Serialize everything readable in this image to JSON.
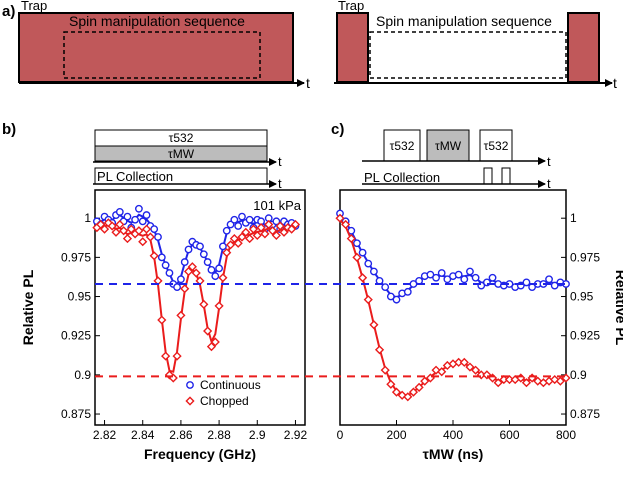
{
  "panel_labels": {
    "a": "a)",
    "b": "b)",
    "c": "c)"
  },
  "panel_a": {
    "left": {
      "trap_label": "Trap",
      "sequence_label": "Spin manipulation sequence",
      "axis_label": "t"
    },
    "right": {
      "trap_label": "Trap",
      "sequence_label": "Spin manipulation sequence",
      "axis_label": "t"
    }
  },
  "panel_b_timing": {
    "tau532": "τ532",
    "taumw": "τMW",
    "pl_collection": "PL Collection",
    "axis_label": "t"
  },
  "panel_c_timing": {
    "tau532_first": "τ532",
    "taumw": "τMW",
    "tau532_second": "τ532",
    "pl_collection": "PL Collection",
    "axis_label": "t"
  },
  "colors": {
    "trap_fill": "#c0585a",
    "continuous": "#1f24e8",
    "chopped": "#ea1c1c",
    "mw_fill": "#bcbcbc"
  },
  "chart_data": [
    {
      "type": "scatter",
      "id": "frequency-scan",
      "title": "",
      "annotation": "101 kPa",
      "xlabel": "Frequency (GHz)",
      "ylabel": "Relative PL",
      "xlim": [
        2.815,
        2.925
      ],
      "ylim": [
        0.868,
        1.018
      ],
      "xticks": [
        2.82,
        2.84,
        2.86,
        2.88,
        2.9,
        2.92
      ],
      "xtick_labels": [
        "2.82",
        "2.84",
        "2.86",
        "2.88",
        "2.9",
        "2.92"
      ],
      "yticks": [
        0.875,
        0.9,
        0.925,
        0.95,
        0.975,
        1
      ],
      "ytick_labels": [
        "0.875",
        "0.9",
        "0.925",
        "0.95",
        "0.975",
        "1"
      ],
      "legend": {
        "placement": "bottom-center",
        "entries": [
          "Continuous",
          "Chopped"
        ]
      },
      "reference_lines": [
        0.958,
        0.899
      ],
      "series": [
        {
          "name": "Continuous",
          "marker": "circle",
          "x": [
            2.816,
            2.818,
            2.82,
            2.822,
            2.824,
            2.826,
            2.828,
            2.83,
            2.832,
            2.834,
            2.836,
            2.838,
            2.84,
            2.842,
            2.844,
            2.846,
            2.848,
            2.85,
            2.852,
            2.854,
            2.856,
            2.858,
            2.86,
            2.862,
            2.864,
            2.866,
            2.868,
            2.87,
            2.872,
            2.874,
            2.876,
            2.878,
            2.88,
            2.882,
            2.884,
            2.886,
            2.888,
            2.89,
            2.892,
            2.894,
            2.896,
            2.898,
            2.9,
            2.902,
            2.904,
            2.906,
            2.908,
            2.91,
            2.912,
            2.914,
            2.916,
            2.918,
            2.92
          ],
          "y": [
            0.998,
            0.996,
            1.001,
            0.999,
            0.997,
            1.002,
            1.004,
            0.998,
            1.001,
            0.994,
            0.999,
            1.006,
            0.998,
            1.002,
            0.995,
            0.993,
            0.988,
            0.975,
            0.97,
            0.965,
            0.958,
            0.956,
            0.961,
            0.972,
            0.98,
            0.985,
            0.983,
            0.982,
            0.977,
            0.972,
            0.967,
            0.963,
            0.968,
            0.982,
            0.992,
            0.996,
            0.999,
            0.995,
            1.001,
            0.997,
            0.999,
            0.994,
            0.999,
            0.998,
            0.993,
            1.0,
            0.996,
            0.998,
            0.993,
            0.998,
            0.996,
            0.997,
            0.995
          ]
        },
        {
          "name": "Chopped",
          "marker": "diamond",
          "x": [
            2.816,
            2.818,
            2.82,
            2.822,
            2.824,
            2.826,
            2.828,
            2.83,
            2.832,
            2.834,
            2.836,
            2.838,
            2.84,
            2.842,
            2.844,
            2.846,
            2.848,
            2.85,
            2.852,
            2.854,
            2.856,
            2.858,
            2.86,
            2.862,
            2.864,
            2.866,
            2.868,
            2.87,
            2.872,
            2.874,
            2.876,
            2.878,
            2.88,
            2.882,
            2.884,
            2.886,
            2.888,
            2.89,
            2.892,
            2.894,
            2.896,
            2.898,
            2.9,
            2.902,
            2.904,
            2.906,
            2.908,
            2.91,
            2.912,
            2.914,
            2.916,
            2.918,
            2.92
          ],
          "y": [
            0.994,
            0.996,
            0.993,
            0.997,
            0.995,
            0.991,
            0.996,
            0.992,
            0.987,
            0.993,
            0.99,
            0.992,
            0.985,
            0.993,
            0.988,
            0.976,
            0.96,
            0.935,
            0.912,
            0.9,
            0.898,
            0.912,
            0.938,
            0.955,
            0.966,
            0.969,
            0.965,
            0.96,
            0.945,
            0.928,
            0.918,
            0.921,
            0.944,
            0.962,
            0.978,
            0.983,
            0.987,
            0.984,
            0.988,
            0.991,
            0.987,
            0.993,
            0.989,
            0.994,
            0.99,
            0.996,
            0.992,
            0.989,
            0.995,
            0.991,
            0.994,
            0.993,
            0.996
          ]
        }
      ]
    },
    {
      "type": "scatter",
      "id": "mw-duration-scan",
      "title": "",
      "xlabel": "τMW (ns)",
      "ylabel": "Relative PL",
      "xlim": [
        0,
        800
      ],
      "ylim": [
        0.868,
        1.018
      ],
      "xticks": [
        0,
        200,
        400,
        600,
        800
      ],
      "xtick_labels": [
        "0",
        "200",
        "400",
        "600",
        "800"
      ],
      "yticks": [
        0.875,
        0.9,
        0.925,
        0.95,
        0.975,
        1
      ],
      "ytick_labels": [
        "0.875",
        "0.9",
        "0.925",
        "0.95",
        "0.975",
        "1"
      ],
      "reference_lines": [
        0.958,
        0.899
      ],
      "series": [
        {
          "name": "Continuous",
          "marker": "circle",
          "x": [
            0,
            20,
            40,
            60,
            80,
            100,
            120,
            140,
            160,
            180,
            200,
            220,
            240,
            260,
            280,
            300,
            320,
            340,
            360,
            380,
            400,
            420,
            440,
            460,
            480,
            500,
            520,
            540,
            560,
            580,
            600,
            620,
            640,
            660,
            680,
            700,
            720,
            740,
            760,
            780,
            800
          ],
          "y": [
            1.003,
            0.998,
            0.992,
            0.984,
            0.978,
            0.971,
            0.966,
            0.96,
            0.956,
            0.95,
            0.948,
            0.952,
            0.953,
            0.958,
            0.96,
            0.963,
            0.964,
            0.962,
            0.965,
            0.961,
            0.963,
            0.964,
            0.961,
            0.966,
            0.962,
            0.957,
            0.959,
            0.962,
            0.958,
            0.957,
            0.958,
            0.956,
            0.957,
            0.959,
            0.956,
            0.958,
            0.958,
            0.961,
            0.957,
            0.959,
            0.958
          ]
        },
        {
          "name": "Chopped",
          "marker": "diamond",
          "x": [
            0,
            20,
            40,
            60,
            80,
            100,
            120,
            140,
            160,
            180,
            200,
            220,
            240,
            260,
            280,
            300,
            320,
            340,
            360,
            380,
            400,
            420,
            440,
            460,
            480,
            500,
            520,
            540,
            560,
            580,
            600,
            620,
            640,
            660,
            680,
            700,
            720,
            740,
            760,
            780,
            800
          ],
          "y": [
            1.0,
            0.996,
            0.987,
            0.975,
            0.962,
            0.948,
            0.932,
            0.916,
            0.903,
            0.894,
            0.889,
            0.887,
            0.886,
            0.889,
            0.892,
            0.896,
            0.898,
            0.903,
            0.902,
            0.906,
            0.907,
            0.908,
            0.908,
            0.905,
            0.903,
            0.9,
            0.9,
            0.898,
            0.895,
            0.897,
            0.897,
            0.897,
            0.898,
            0.895,
            0.898,
            0.896,
            0.895,
            0.896,
            0.897,
            0.896,
            0.898
          ]
        }
      ]
    }
  ]
}
